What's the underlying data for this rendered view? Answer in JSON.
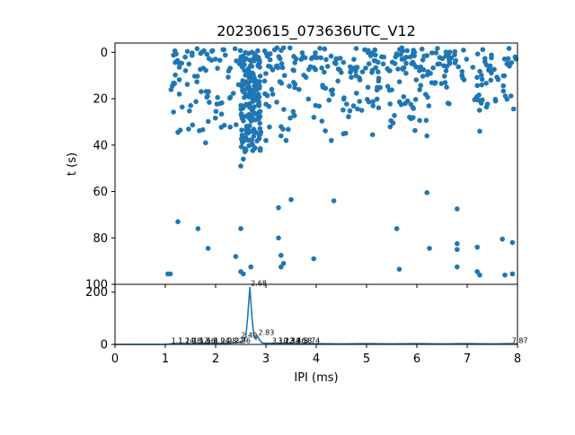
{
  "title": "20230615_073636UTC_V12",
  "colors": {
    "series": "#1f77b4",
    "axes": "#000000",
    "background": "#ffffff"
  },
  "chart_data": [
    {
      "type": "scatter",
      "name": "raster",
      "ylabel": "t (s)",
      "xlim": [
        0,
        8
      ],
      "ylim": [
        100,
        -4
      ],
      "y_inverted": true,
      "yticks": [
        0,
        20,
        40,
        60,
        80,
        100
      ],
      "x_ticklabels_shown": false,
      "clusters": [
        {
          "x_range": [
            1.1,
            8.0
          ],
          "y_range": [
            -2,
            8
          ],
          "count": 220
        },
        {
          "x_range": [
            1.1,
            8.0
          ],
          "y_range": [
            8,
            25
          ],
          "count": 170
        },
        {
          "x_range": [
            1.1,
            6.3
          ],
          "y_range": [
            25,
            36
          ],
          "count": 45
        },
        {
          "x_range": [
            2.5,
            2.9
          ],
          "y_range": [
            0,
            44
          ],
          "count": 150
        }
      ],
      "points": [
        [
          1.25,
          34.5
        ],
        [
          1.8,
          39
        ],
        [
          2.55,
          38
        ],
        [
          2.6,
          42
        ],
        [
          2.55,
          46
        ],
        [
          2.5,
          49
        ],
        [
          3.0,
          38
        ],
        [
          3.3,
          36
        ],
        [
          3.4,
          38
        ],
        [
          4.3,
          38
        ],
        [
          6.2,
          36
        ],
        [
          7.25,
          34
        ],
        [
          1.05,
          95.5
        ],
        [
          1.1,
          95.5
        ],
        [
          1.25,
          73
        ],
        [
          1.65,
          76
        ],
        [
          1.85,
          84.5
        ],
        [
          2.4,
          88
        ],
        [
          2.5,
          76
        ],
        [
          2.5,
          94.5
        ],
        [
          2.55,
          95.5
        ],
        [
          2.7,
          92.5
        ],
        [
          3.25,
          67
        ],
        [
          3.25,
          80
        ],
        [
          3.3,
          87.5
        ],
        [
          3.3,
          92.5
        ],
        [
          3.35,
          91
        ],
        [
          3.5,
          63.5
        ],
        [
          3.95,
          89
        ],
        [
          4.35,
          64
        ],
        [
          5.6,
          76
        ],
        [
          5.65,
          93.5
        ],
        [
          6.2,
          60.5
        ],
        [
          6.25,
          84.5
        ],
        [
          6.8,
          67.5
        ],
        [
          6.8,
          82.5
        ],
        [
          6.8,
          85
        ],
        [
          6.8,
          92.5
        ],
        [
          7.2,
          84
        ],
        [
          7.2,
          94.5
        ],
        [
          7.25,
          96
        ],
        [
          7.7,
          80.5
        ],
        [
          7.75,
          96
        ],
        [
          7.9,
          82
        ],
        [
          7.9,
          95.5
        ]
      ]
    },
    {
      "type": "line",
      "name": "histogram",
      "xlabel": "IPI (ms)",
      "xlim": [
        0,
        8
      ],
      "ylim": [
        0,
        230
      ],
      "xticks": [
        0,
        1,
        2,
        3,
        4,
        5,
        6,
        7,
        8
      ],
      "yticks": [
        0,
        200
      ],
      "x": [
        0,
        1.0,
        1.1,
        1.3,
        1.5,
        1.7,
        1.9,
        2.1,
        2.3,
        2.45,
        2.55,
        2.6,
        2.64,
        2.68,
        2.72,
        2.76,
        2.8,
        2.83,
        2.87,
        2.92,
        3.0,
        3.1,
        3.3,
        3.5,
        3.7,
        4.0,
        4.5,
        5.0,
        5.5,
        6.0,
        6.5,
        7.0,
        7.5,
        7.87,
        8.0
      ],
      "y": [
        0,
        0,
        2,
        3,
        2,
        4,
        3,
        4,
        5,
        8,
        12,
        30,
        110,
        220,
        110,
        30,
        20,
        32,
        18,
        6,
        4,
        5,
        3,
        4,
        2,
        3,
        2,
        3,
        2,
        3,
        2,
        3,
        2,
        3,
        2
      ],
      "peak_labels": [
        {
          "x": 1.1,
          "y": 2,
          "text": "1.1"
        },
        {
          "x": 1.24,
          "y": 2,
          "text": "1.24"
        },
        {
          "x": 1.38,
          "y": 2,
          "text": "1.38"
        },
        {
          "x": 1.52,
          "y": 2,
          "text": "1.52"
        },
        {
          "x": 1.66,
          "y": 2,
          "text": "1.66"
        },
        {
          "x": 1.8,
          "y": 2,
          "text": "1.8"
        },
        {
          "x": 1.94,
          "y": 2,
          "text": "1.94"
        },
        {
          "x": 2.08,
          "y": 2,
          "text": "2.08"
        },
        {
          "x": 2.22,
          "y": 2,
          "text": "2.22"
        },
        {
          "x": 2.36,
          "y": 2,
          "text": "2.36"
        },
        {
          "x": 2.49,
          "y": 22,
          "text": "2.49"
        },
        {
          "x": 2.68,
          "y": 222,
          "text": "2.68"
        },
        {
          "x": 2.83,
          "y": 32,
          "text": "2.83"
        },
        {
          "x": 3.1,
          "y": 2,
          "text": "3.10"
        },
        {
          "x": 3.22,
          "y": 2,
          "text": "3.22"
        },
        {
          "x": 3.34,
          "y": 2,
          "text": "3.34"
        },
        {
          "x": 3.46,
          "y": 2,
          "text": "3.46"
        },
        {
          "x": 3.58,
          "y": 2,
          "text": "3.58"
        },
        {
          "x": 3.74,
          "y": 2,
          "text": "3.74"
        },
        {
          "x": 7.87,
          "y": 2,
          "text": "7.87"
        }
      ]
    }
  ]
}
